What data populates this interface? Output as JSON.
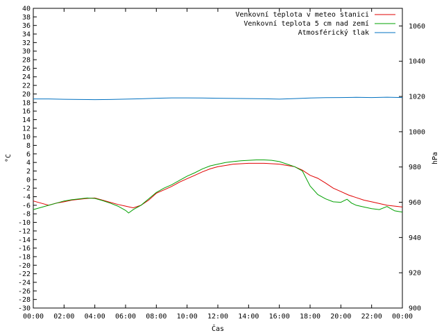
{
  "chart_data": {
    "type": "line",
    "xlabel": "Čas",
    "ylabel_left": "°C",
    "ylabel_right": "hPa",
    "x_ticks": [
      "00:00",
      "02:00",
      "04:00",
      "06:00",
      "08:00",
      "10:00",
      "12:00",
      "14:00",
      "16:00",
      "18:00",
      "20:00",
      "22:00",
      "00:00"
    ],
    "xlim_hours": [
      0,
      24
    ],
    "ylim_left": [
      -30,
      40
    ],
    "y_left_step": 2,
    "ylim_right": [
      900,
      1070
    ],
    "y_right_ticks": [
      900,
      920,
      940,
      960,
      980,
      1000,
      1020,
      1040,
      1060
    ],
    "grid": false,
    "legend_position": "top-right",
    "series": [
      {
        "name": "Venkovní teplota v meteo stanici",
        "axis": "left",
        "color": "#e00000",
        "x": [
          0,
          0.5,
          1,
          1.5,
          2,
          2.5,
          3,
          3.5,
          4,
          4.5,
          5,
          5.5,
          6,
          6.5,
          7,
          7.5,
          8,
          8.5,
          9,
          9.5,
          10,
          10.5,
          11,
          11.5,
          12,
          12.5,
          13,
          13.5,
          14,
          14.5,
          15,
          15.5,
          16,
          16.5,
          17,
          17.5,
          18,
          18.5,
          19,
          19.5,
          20,
          20.5,
          21,
          21.5,
          22,
          22.5,
          23,
          23.5,
          24
        ],
        "y": [
          -5.0,
          -5.5,
          -6.0,
          -5.5,
          -5.2,
          -4.8,
          -4.6,
          -4.4,
          -4.3,
          -4.8,
          -5.3,
          -5.8,
          -6.2,
          -6.6,
          -6.0,
          -4.8,
          -3.2,
          -2.4,
          -1.6,
          -0.6,
          0.2,
          1.0,
          1.8,
          2.5,
          3.0,
          3.3,
          3.6,
          3.7,
          3.8,
          3.8,
          3.8,
          3.7,
          3.6,
          3.3,
          3.0,
          2.2,
          1.0,
          0.3,
          -0.8,
          -2.0,
          -2.8,
          -3.6,
          -4.2,
          -4.8,
          -5.2,
          -5.6,
          -6.0,
          -6.2,
          -6.4
        ]
      },
      {
        "name": "Venkovní teplota 5 cm nad zemí",
        "axis": "left",
        "color": "#00a000",
        "x": [
          0,
          0.5,
          1,
          1.5,
          2,
          2.5,
          3,
          3.5,
          4,
          4.5,
          5,
          5.5,
          6,
          6.2,
          6.5,
          7,
          7.5,
          8,
          8.5,
          9,
          9.5,
          10,
          10.5,
          11,
          11.5,
          12,
          12.5,
          13,
          13.5,
          14,
          14.5,
          15,
          15.5,
          16,
          16.5,
          17,
          17.5,
          18,
          18.5,
          19,
          19.5,
          20,
          20.4,
          20.7,
          21,
          21.5,
          22,
          22.5,
          23,
          23.5,
          24
        ],
        "y": [
          -7.0,
          -6.5,
          -6.0,
          -5.5,
          -5.0,
          -4.7,
          -4.5,
          -4.3,
          -4.4,
          -4.9,
          -5.5,
          -6.2,
          -7.2,
          -7.8,
          -7.0,
          -6.0,
          -4.5,
          -3.0,
          -2.0,
          -1.2,
          -0.2,
          0.8,
          1.6,
          2.5,
          3.2,
          3.6,
          4.0,
          4.2,
          4.4,
          4.5,
          4.6,
          4.6,
          4.5,
          4.2,
          3.6,
          3.0,
          2.0,
          -1.5,
          -3.5,
          -4.5,
          -5.2,
          -5.3,
          -4.6,
          -5.5,
          -6.0,
          -6.4,
          -6.8,
          -7.0,
          -6.3,
          -7.3,
          -7.6
        ]
      },
      {
        "name": "Atmosférický tlak",
        "axis": "right",
        "color": "#0070c0",
        "x": [
          0,
          1,
          2,
          3,
          4,
          5,
          6,
          7,
          8,
          9,
          10,
          11,
          12,
          13,
          14,
          15,
          16,
          17,
          18,
          19,
          20,
          21,
          22,
          23,
          24
        ],
        "y": [
          1018.6,
          1018.6,
          1018.4,
          1018.3,
          1018.2,
          1018.3,
          1018.5,
          1018.7,
          1019.0,
          1019.2,
          1019.2,
          1019.1,
          1019.0,
          1018.9,
          1018.8,
          1018.7,
          1018.5,
          1018.8,
          1019.1,
          1019.3,
          1019.4,
          1019.5,
          1019.4,
          1019.6,
          1019.4
        ]
      }
    ]
  }
}
